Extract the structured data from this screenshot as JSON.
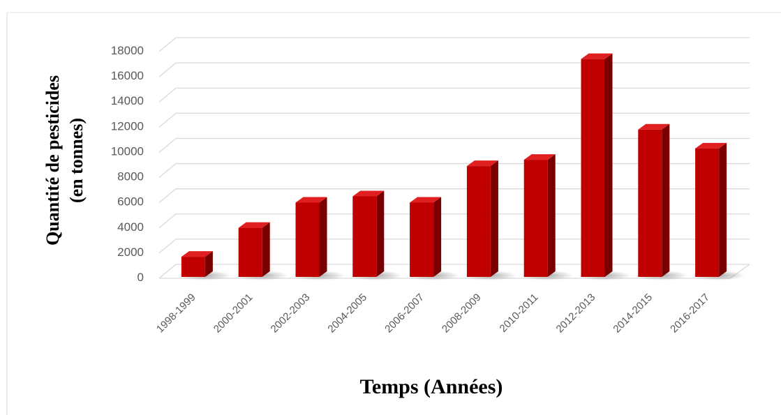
{
  "chart_data": {
    "type": "bar",
    "style": "3d-column",
    "categories": [
      "1998-1999",
      "2000-2001",
      "2002-2003",
      "2004-2005",
      "2006-2007",
      "2008-2009",
      "2010-2011",
      "2012-2013",
      "2014-2015",
      "2016-2017"
    ],
    "values": [
      1600,
      3900,
      5900,
      6400,
      5900,
      8800,
      9300,
      17300,
      11700,
      10200
    ],
    "title": "",
    "xlabel": "Temps (Années)",
    "ylabel_line1": "Quantité de pesticides",
    "ylabel_line2": "(en tonnes)",
    "ylim": [
      0,
      18000
    ],
    "yticks": [
      "0",
      "2000",
      "4000",
      "6000",
      "8000",
      "10000",
      "12000",
      "14000",
      "16000",
      "18000"
    ],
    "grid": true,
    "legend": "none",
    "colors": {
      "bar_front": "#c00000",
      "bar_side": "#7a0000",
      "bar_top": "#e02020",
      "grid": "#d9d9d9"
    }
  }
}
